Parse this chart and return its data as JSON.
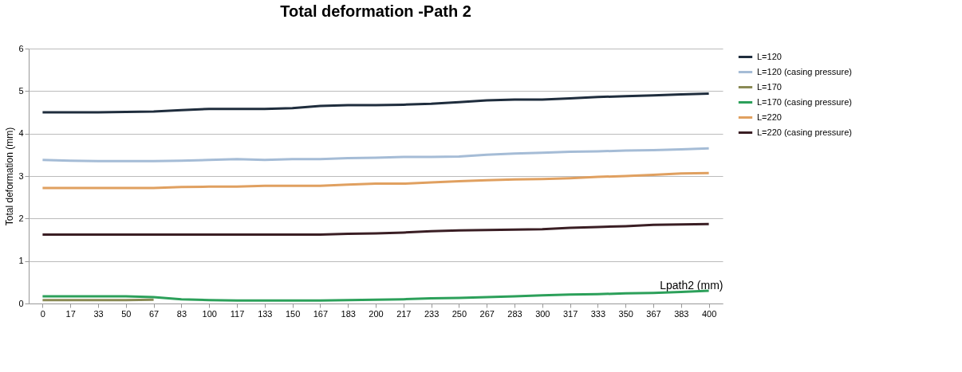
{
  "chart_data": {
    "type": "line",
    "title": "Total deformation -Path 2",
    "xlabel": "Lpath2 (mm)",
    "ylabel": "Total deformation (mm)",
    "categories": [
      "0",
      "17",
      "33",
      "50",
      "67",
      "83",
      "100",
      "117",
      "133",
      "150",
      "167",
      "183",
      "200",
      "217",
      "233",
      "250",
      "267",
      "283",
      "300",
      "317",
      "333",
      "350",
      "367",
      "383",
      "400"
    ],
    "ylim": [
      0,
      6
    ],
    "yticks": [
      0,
      1,
      2,
      3,
      4,
      5,
      6
    ],
    "grid": "y",
    "legend": "right",
    "marker": "none",
    "line_style": "solid",
    "series": [
      {
        "name": "L=120",
        "color": "#1f2d3d",
        "values": [
          4.5,
          4.5,
          4.5,
          4.51,
          4.52,
          4.55,
          4.58,
          4.58,
          4.58,
          4.6,
          4.65,
          4.67,
          4.67,
          4.68,
          4.7,
          4.74,
          4.78,
          4.8,
          4.8,
          4.83,
          4.86,
          4.88,
          4.9,
          4.92,
          4.94
        ]
      },
      {
        "name": "L=120  (casing pressure)",
        "color": "#a5bcd6",
        "values": [
          3.38,
          3.36,
          3.35,
          3.35,
          3.35,
          3.36,
          3.38,
          3.4,
          3.38,
          3.4,
          3.4,
          3.42,
          3.43,
          3.45,
          3.45,
          3.46,
          3.5,
          3.53,
          3.55,
          3.57,
          3.58,
          3.6,
          3.61,
          3.63,
          3.65
        ]
      },
      {
        "name": "L=170",
        "color": "#8a8a55",
        "values": [
          0.08,
          0.08,
          0.08,
          0.08,
          0.09,
          null,
          null,
          null,
          null,
          null,
          null,
          null,
          null,
          null,
          null,
          null,
          null,
          null,
          null,
          null,
          null,
          null,
          null,
          null,
          null
        ]
      },
      {
        "name": "L=170 (casing pressure)",
        "color": "#2ca05a",
        "values": [
          0.17,
          0.17,
          0.17,
          0.17,
          0.15,
          0.1,
          0.08,
          0.07,
          0.07,
          0.07,
          0.07,
          0.08,
          0.09,
          0.1,
          0.12,
          0.13,
          0.15,
          0.17,
          0.19,
          0.21,
          0.22,
          0.24,
          0.25,
          0.27,
          0.3
        ]
      },
      {
        "name": "L=220",
        "color": "#e0a060",
        "values": [
          2.72,
          2.72,
          2.72,
          2.72,
          2.72,
          2.74,
          2.75,
          2.75,
          2.77,
          2.77,
          2.77,
          2.8,
          2.82,
          2.82,
          2.85,
          2.88,
          2.9,
          2.92,
          2.93,
          2.95,
          2.98,
          3.0,
          3.03,
          3.06,
          3.07
        ]
      },
      {
        "name": "L=220 (casing pressure)",
        "color": "#3a1e24",
        "values": [
          1.62,
          1.62,
          1.62,
          1.62,
          1.62,
          1.62,
          1.62,
          1.62,
          1.62,
          1.62,
          1.62,
          1.64,
          1.65,
          1.67,
          1.7,
          1.72,
          1.73,
          1.74,
          1.75,
          1.78,
          1.8,
          1.82,
          1.85,
          1.86,
          1.87
        ]
      }
    ]
  }
}
